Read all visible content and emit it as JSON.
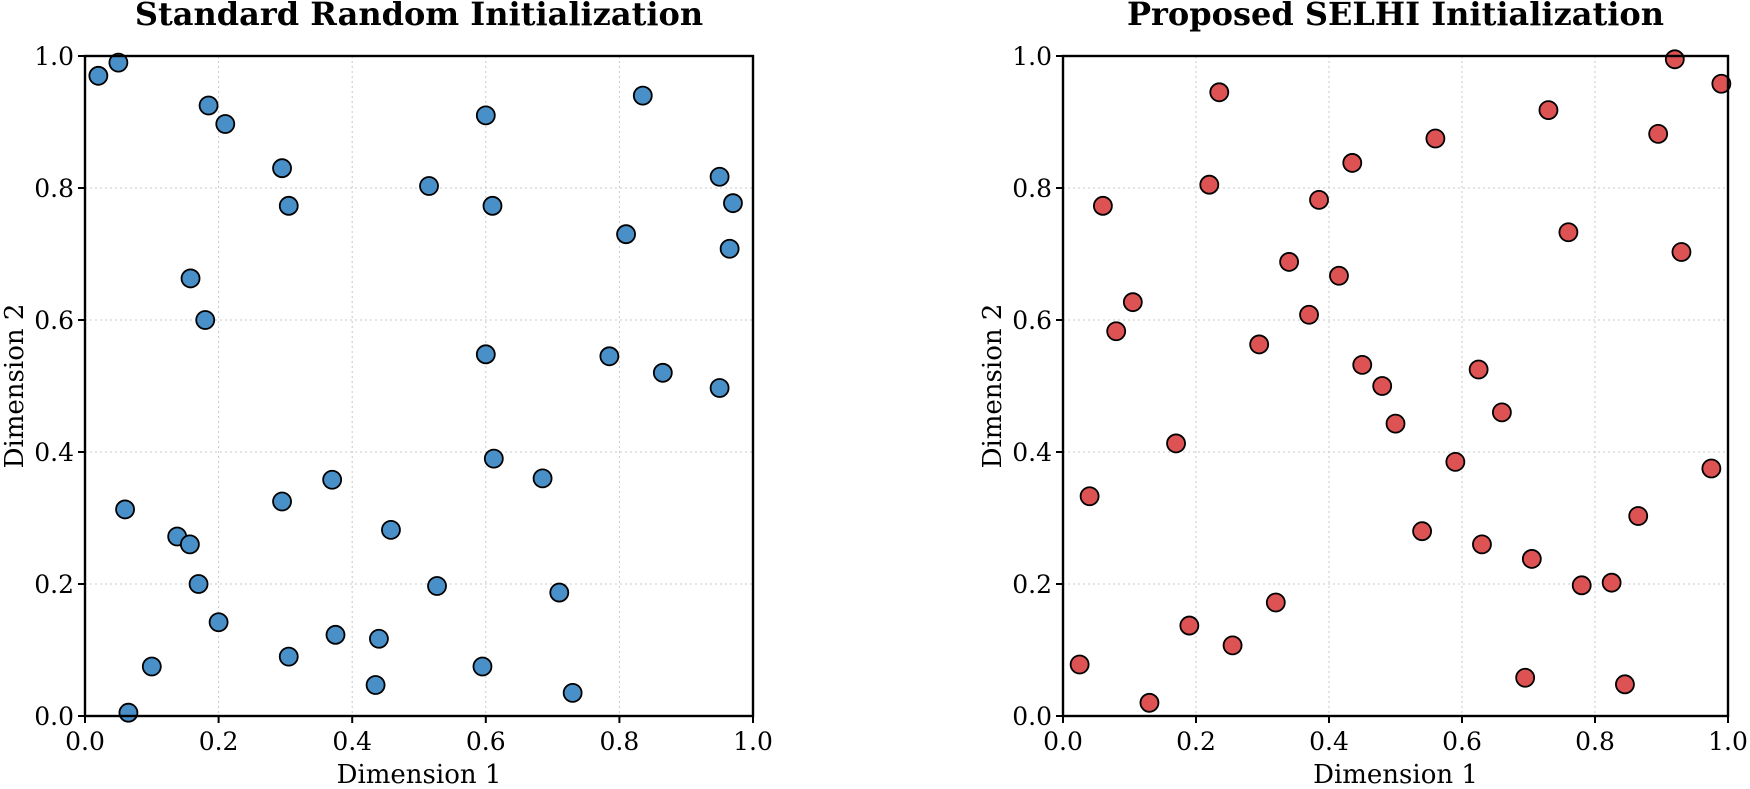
{
  "chart_data": [
    {
      "type": "scatter",
      "title": "Standard Random Initialization",
      "xlabel": "Dimension 1",
      "ylabel": "Dimension 2",
      "xlim": [
        0,
        1
      ],
      "ylim": [
        0,
        1
      ],
      "xticks": [
        "0.0",
        "0.2",
        "0.4",
        "0.6",
        "0.8",
        "1.0"
      ],
      "yticks": [
        "0.0",
        "0.2",
        "0.4",
        "0.6",
        "0.8",
        "1.0"
      ],
      "grid": true,
      "color": "#4a90c8",
      "points": [
        [
          0.02,
          0.97
        ],
        [
          0.05,
          0.99
        ],
        [
          0.185,
          0.925
        ],
        [
          0.21,
          0.897
        ],
        [
          0.295,
          0.83
        ],
        [
          0.305,
          0.773
        ],
        [
          0.515,
          0.803
        ],
        [
          0.6,
          0.91
        ],
        [
          0.61,
          0.773
        ],
        [
          0.835,
          0.94
        ],
        [
          0.95,
          0.817
        ],
        [
          0.97,
          0.777
        ],
        [
          0.81,
          0.73
        ],
        [
          0.965,
          0.708
        ],
        [
          0.158,
          0.663
        ],
        [
          0.18,
          0.6
        ],
        [
          0.6,
          0.548
        ],
        [
          0.785,
          0.545
        ],
        [
          0.865,
          0.52
        ],
        [
          0.95,
          0.497
        ],
        [
          0.612,
          0.39
        ],
        [
          0.685,
          0.36
        ],
        [
          0.37,
          0.358
        ],
        [
          0.295,
          0.325
        ],
        [
          0.06,
          0.313
        ],
        [
          0.458,
          0.282
        ],
        [
          0.138,
          0.272
        ],
        [
          0.157,
          0.26
        ],
        [
          0.17,
          0.2
        ],
        [
          0.527,
          0.197
        ],
        [
          0.71,
          0.187
        ],
        [
          0.2,
          0.142
        ],
        [
          0.375,
          0.123
        ],
        [
          0.44,
          0.117
        ],
        [
          0.305,
          0.09
        ],
        [
          0.1,
          0.075
        ],
        [
          0.595,
          0.075
        ],
        [
          0.435,
          0.047
        ],
        [
          0.73,
          0.035
        ],
        [
          0.065,
          0.005
        ]
      ]
    },
    {
      "type": "scatter",
      "title": "Proposed SELHI Initialization",
      "xlabel": "Dimension 1",
      "ylabel": "Dimension 2",
      "xlim": [
        0,
        1
      ],
      "ylim": [
        0,
        1
      ],
      "xticks": [
        "0.0",
        "0.2",
        "0.4",
        "0.6",
        "0.8",
        "1.0"
      ],
      "yticks": [
        "0.0",
        "0.2",
        "0.4",
        "0.6",
        "0.8",
        "1.0"
      ],
      "grid": true,
      "color": "#dd5252",
      "points": [
        [
          0.92,
          0.995
        ],
        [
          0.99,
          0.958
        ],
        [
          0.235,
          0.945
        ],
        [
          0.73,
          0.918
        ],
        [
          0.895,
          0.882
        ],
        [
          0.56,
          0.875
        ],
        [
          0.435,
          0.838
        ],
        [
          0.22,
          0.805
        ],
        [
          0.385,
          0.782
        ],
        [
          0.06,
          0.773
        ],
        [
          0.76,
          0.733
        ],
        [
          0.93,
          0.703
        ],
        [
          0.34,
          0.688
        ],
        [
          0.415,
          0.667
        ],
        [
          0.105,
          0.627
        ],
        [
          0.37,
          0.608
        ],
        [
          0.08,
          0.583
        ],
        [
          0.295,
          0.563
        ],
        [
          0.45,
          0.532
        ],
        [
          0.625,
          0.525
        ],
        [
          0.48,
          0.5
        ],
        [
          0.66,
          0.46
        ],
        [
          0.5,
          0.443
        ],
        [
          0.17,
          0.413
        ],
        [
          0.59,
          0.385
        ],
        [
          0.975,
          0.375
        ],
        [
          0.04,
          0.333
        ],
        [
          0.865,
          0.303
        ],
        [
          0.54,
          0.28
        ],
        [
          0.63,
          0.26
        ],
        [
          0.705,
          0.238
        ],
        [
          0.78,
          0.198
        ],
        [
          0.825,
          0.202
        ],
        [
          0.32,
          0.172
        ],
        [
          0.19,
          0.137
        ],
        [
          0.255,
          0.107
        ],
        [
          0.025,
          0.078
        ],
        [
          0.695,
          0.058
        ],
        [
          0.845,
          0.048
        ],
        [
          0.13,
          0.02
        ]
      ]
    }
  ]
}
